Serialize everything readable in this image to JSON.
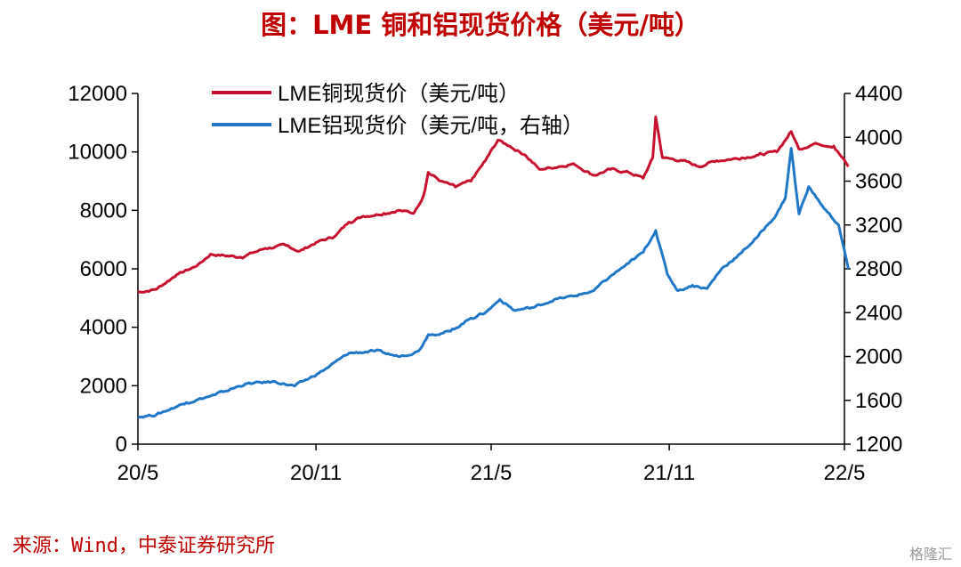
{
  "title": "图：LME 铜和铝现货价格（美元/吨）",
  "source": "来源：Wind，中泰证券研究所",
  "watermark": "格隆汇",
  "chart_data": {
    "type": "line",
    "x_ticks": [
      "20/5",
      "20/11",
      "21/5",
      "21/11",
      "22/5"
    ],
    "y_left": {
      "ticks": [
        0,
        2000,
        4000,
        6000,
        8000,
        10000,
        12000
      ],
      "ylim": [
        0,
        12000
      ]
    },
    "y_right": {
      "ticks": [
        1200,
        1600,
        2000,
        2400,
        2800,
        3200,
        3600,
        4000,
        4400
      ],
      "ylim": [
        1200,
        4400
      ]
    },
    "legend_position": "top-left",
    "series": [
      {
        "name": "LME铜现货价（美元/吨）",
        "color": "#c8102e",
        "axis": "left",
        "points": [
          [
            "2020-05-01",
            5200
          ],
          [
            "2020-05-20",
            5300
          ],
          [
            "2020-06-10",
            5800
          ],
          [
            "2020-07-01",
            6100
          ],
          [
            "2020-07-15",
            6500
          ],
          [
            "2020-08-15",
            6400
          ],
          [
            "2020-09-10",
            6700
          ],
          [
            "2020-10-01",
            6800
          ],
          [
            "2020-10-15",
            6600
          ],
          [
            "2020-11-01",
            6900
          ],
          [
            "2020-11-20",
            7100
          ],
          [
            "2020-12-05",
            7600
          ],
          [
            "2020-12-20",
            7800
          ],
          [
            "2021-01-10",
            7900
          ],
          [
            "2021-01-25",
            8000
          ],
          [
            "2021-02-10",
            7900
          ],
          [
            "2021-02-20",
            8500
          ],
          [
            "2021-02-25",
            9300
          ],
          [
            "2021-03-10",
            9000
          ],
          [
            "2021-03-25",
            8800
          ],
          [
            "2021-04-10",
            9000
          ],
          [
            "2021-04-25",
            9700
          ],
          [
            "2021-05-08",
            10400
          ],
          [
            "2021-05-20",
            10200
          ],
          [
            "2021-06-05",
            9900
          ],
          [
            "2021-06-20",
            9400
          ],
          [
            "2021-07-10",
            9500
          ],
          [
            "2021-07-25",
            9600
          ],
          [
            "2021-08-15",
            9200
          ],
          [
            "2021-09-01",
            9400
          ],
          [
            "2021-09-20",
            9300
          ],
          [
            "2021-10-05",
            9100
          ],
          [
            "2021-10-15",
            9800
          ],
          [
            "2021-10-18",
            11200
          ],
          [
            "2021-10-25",
            9800
          ],
          [
            "2021-11-15",
            9700
          ],
          [
            "2021-12-01",
            9500
          ],
          [
            "2021-12-20",
            9700
          ],
          [
            "2022-01-15",
            9800
          ],
          [
            "2022-02-01",
            9900
          ],
          [
            "2022-02-20",
            10000
          ],
          [
            "2022-03-07",
            10700
          ],
          [
            "2022-03-15",
            10100
          ],
          [
            "2022-04-01",
            10300
          ],
          [
            "2022-04-20",
            10200
          ],
          [
            "2022-05-05",
            9500
          ]
        ]
      },
      {
        "name": "LME铝现货价（美元/吨，右轴）",
        "color": "#1f77c8",
        "axis": "right",
        "points": [
          [
            "2020-05-01",
            1450
          ],
          [
            "2020-05-20",
            1470
          ],
          [
            "2020-06-20",
            1580
          ],
          [
            "2020-07-20",
            1650
          ],
          [
            "2020-08-20",
            1750
          ],
          [
            "2020-09-20",
            1770
          ],
          [
            "2020-10-10",
            1730
          ],
          [
            "2020-10-25",
            1800
          ],
          [
            "2020-11-10",
            1880
          ],
          [
            "2020-12-05",
            2030
          ],
          [
            "2021-01-01",
            2050
          ],
          [
            "2021-01-25",
            2000
          ],
          [
            "2021-02-15",
            2050
          ],
          [
            "2021-02-25",
            2200
          ],
          [
            "2021-03-20",
            2230
          ],
          [
            "2021-04-10",
            2350
          ],
          [
            "2021-04-25",
            2400
          ],
          [
            "2021-05-10",
            2520
          ],
          [
            "2021-05-25",
            2420
          ],
          [
            "2021-06-15",
            2450
          ],
          [
            "2021-07-05",
            2520
          ],
          [
            "2021-07-25",
            2550
          ],
          [
            "2021-08-15",
            2600
          ],
          [
            "2021-09-01",
            2730
          ],
          [
            "2021-09-20",
            2850
          ],
          [
            "2021-10-05",
            2950
          ],
          [
            "2021-10-18",
            3150
          ],
          [
            "2021-10-30",
            2750
          ],
          [
            "2021-11-10",
            2600
          ],
          [
            "2021-11-25",
            2650
          ],
          [
            "2021-12-10",
            2620
          ],
          [
            "2021-12-25",
            2800
          ],
          [
            "2022-01-15",
            2950
          ],
          [
            "2022-02-01",
            3100
          ],
          [
            "2022-02-20",
            3300
          ],
          [
            "2022-03-01",
            3450
          ],
          [
            "2022-03-07",
            3900
          ],
          [
            "2022-03-15",
            3300
          ],
          [
            "2022-03-25",
            3550
          ],
          [
            "2022-04-10",
            3350
          ],
          [
            "2022-04-25",
            3200
          ],
          [
            "2022-05-05",
            2800
          ]
        ]
      }
    ]
  }
}
